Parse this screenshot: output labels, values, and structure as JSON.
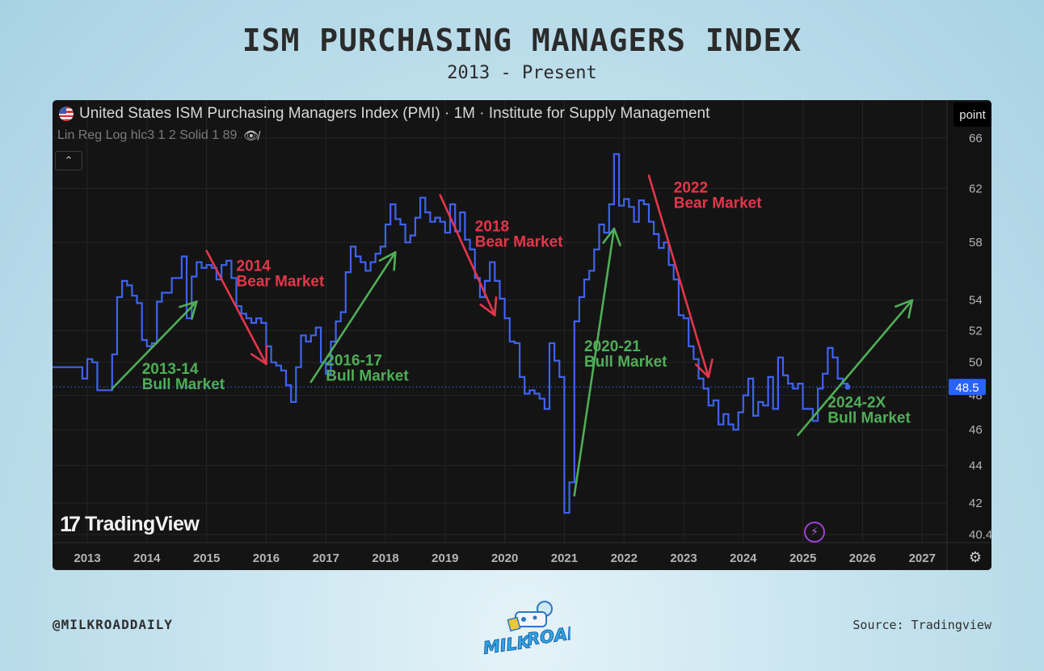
{
  "title": "ISM PURCHASING MANAGERS INDEX",
  "subtitle": "2013 - Present",
  "chart_header": {
    "series_title": "United States ISM Purchasing Managers Index (PMI) · 1M · Institute for Supply Management",
    "indicator": "Lin Reg Log hlc3 1 2 Solid 1 89",
    "mode_button": "point",
    "collapse_icon": "chevron-up-icon",
    "eye_icon": "eye-off-icon",
    "flag_icon": "us-flag-icon"
  },
  "watermark": "TradingView",
  "footer": {
    "handle": "@MILKROADDAILY",
    "source": "Source: Tradingview",
    "brand": [
      "MILK",
      "ROAD"
    ]
  },
  "colors": {
    "line": "#3f63f0",
    "bull": "#4fae57",
    "bear": "#e5364a",
    "panel": "#141414",
    "last_price_tag": "#2962ff"
  },
  "chart_data": {
    "type": "line",
    "title": "United States ISM Purchasing Managers Index (PMI)",
    "xlabel": "",
    "ylabel": "",
    "scale": "log",
    "grid": true,
    "x_tick_labels": [
      "2013",
      "2014",
      "2015",
      "2016",
      "2017",
      "2018",
      "2019",
      "2020",
      "2021",
      "2022",
      "2023",
      "2024",
      "2025",
      "2026",
      "2027"
    ],
    "y_tick_labels": [
      "66",
      "62",
      "58",
      "54",
      "52",
      "50",
      "48",
      "46",
      "44",
      "42",
      "40.4"
    ],
    "y_ticks": [
      66,
      62,
      58,
      54,
      52,
      50,
      48,
      46,
      44,
      42,
      40.4
    ],
    "xlim": [
      "2012-06",
      "2027-06"
    ],
    "ylim": [
      40.0,
      67.8
    ],
    "last_value_label": "48.5",
    "last_value": 48.5,
    "series": [
      {
        "values": [
          [
            "2012-06",
            49.7
          ],
          [
            "2012-09",
            49.7
          ],
          [
            "2012-12",
            49.0
          ],
          [
            "2013-01",
            50.2
          ],
          [
            "2013-02",
            50.0
          ],
          [
            "2013-03",
            48.3
          ],
          [
            "2013-05",
            48.3
          ],
          [
            "2013-06",
            50.5
          ],
          [
            "2013-07",
            54.2
          ],
          [
            "2013-08",
            55.3
          ],
          [
            "2013-09",
            55.0
          ],
          [
            "2013-10",
            54.3
          ],
          [
            "2013-11",
            53.8
          ],
          [
            "2013-12",
            51.4
          ],
          [
            "2014-01",
            51.0
          ],
          [
            "2014-02",
            51.2
          ],
          [
            "2014-03",
            53.9
          ],
          [
            "2014-04",
            54.5
          ],
          [
            "2014-05",
            54.5
          ],
          [
            "2014-06",
            55.5
          ],
          [
            "2014-07",
            55.5
          ],
          [
            "2014-08",
            57.0
          ],
          [
            "2014-09",
            52.8
          ],
          [
            "2014-10",
            55.6
          ],
          [
            "2014-11",
            56.6
          ],
          [
            "2014-12",
            56.2
          ],
          [
            "2015-01",
            56.4
          ],
          [
            "2015-02",
            56.2
          ],
          [
            "2015-03",
            55.4
          ],
          [
            "2015-04",
            56.4
          ],
          [
            "2015-05",
            56.7
          ],
          [
            "2015-06",
            55.5
          ],
          [
            "2015-07",
            53.6
          ],
          [
            "2015-08",
            53.1
          ],
          [
            "2015-09",
            52.8
          ],
          [
            "2015-10",
            52.5
          ],
          [
            "2015-11",
            52.8
          ],
          [
            "2015-12",
            52.5
          ],
          [
            "2016-01",
            51.0
          ],
          [
            "2016-02",
            50.0
          ],
          [
            "2016-03",
            49.8
          ],
          [
            "2016-04",
            49.5
          ],
          [
            "2016-05",
            48.6
          ],
          [
            "2016-06",
            47.6
          ],
          [
            "2016-07",
            49.7
          ],
          [
            "2016-08",
            51.7
          ],
          [
            "2016-09",
            51.3
          ],
          [
            "2016-10",
            51.7
          ],
          [
            "2016-11",
            52.2
          ],
          [
            "2016-12",
            50.0
          ],
          [
            "2017-01",
            49.3
          ],
          [
            "2017-02",
            51.3
          ],
          [
            "2017-03",
            52.6
          ],
          [
            "2017-04",
            53.2
          ],
          [
            "2017-05",
            55.9
          ],
          [
            "2017-06",
            57.7
          ],
          [
            "2017-07",
            57.0
          ],
          [
            "2017-08",
            56.6
          ],
          [
            "2017-09",
            56.0
          ],
          [
            "2017-10",
            56.6
          ],
          [
            "2017-11",
            57.2
          ],
          [
            "2017-12",
            57.7
          ],
          [
            "2018-01",
            59.3
          ],
          [
            "2018-02",
            60.8
          ],
          [
            "2018-03",
            59.7
          ],
          [
            "2018-04",
            59.3
          ],
          [
            "2018-05",
            58.0
          ],
          [
            "2018-06",
            58.5
          ],
          [
            "2018-07",
            59.8
          ],
          [
            "2018-08",
            61.3
          ],
          [
            "2018-09",
            60.2
          ],
          [
            "2018-10",
            59.5
          ],
          [
            "2018-11",
            59.8
          ],
          [
            "2018-12",
            59.5
          ],
          [
            "2019-01",
            58.7
          ],
          [
            "2019-02",
            60.8
          ],
          [
            "2019-03",
            58.8
          ],
          [
            "2019-04",
            60.2
          ],
          [
            "2019-05",
            58.2
          ],
          [
            "2019-06",
            57.5
          ],
          [
            "2019-07",
            55.5
          ],
          [
            "2019-08",
            54.2
          ],
          [
            "2019-09",
            55.3
          ],
          [
            "2019-10",
            56.6
          ],
          [
            "2019-11",
            55.3
          ],
          [
            "2019-12",
            54.1
          ],
          [
            "2020-01",
            52.8
          ],
          [
            "2020-02",
            51.3
          ],
          [
            "2020-03",
            51.2
          ],
          [
            "2020-04",
            49.1
          ],
          [
            "2020-05",
            48.1
          ],
          [
            "2020-06",
            48.3
          ],
          [
            "2020-07",
            48.1
          ],
          [
            "2020-08",
            47.8
          ],
          [
            "2020-09",
            47.2
          ],
          [
            "2020-10",
            51.2
          ],
          [
            "2020-11",
            50.1
          ],
          [
            "2020-12",
            49.1
          ],
          [
            "2021-01",
            41.5
          ],
          [
            "2021-02",
            43.1
          ],
          [
            "2021-03",
            52.6
          ],
          [
            "2021-04",
            54.2
          ],
          [
            "2021-05",
            55.4
          ],
          [
            "2021-06",
            56.0
          ],
          [
            "2021-07",
            57.5
          ],
          [
            "2021-08",
            59.3
          ],
          [
            "2021-09",
            58.7
          ],
          [
            "2021-10",
            60.8
          ],
          [
            "2021-11",
            64.7
          ],
          [
            "2021-12",
            60.7
          ],
          [
            "2022-01",
            61.2
          ],
          [
            "2022-02",
            60.6
          ],
          [
            "2022-03",
            59.5
          ],
          [
            "2022-04",
            61.1
          ],
          [
            "2022-05",
            60.8
          ],
          [
            "2022-06",
            59.5
          ],
          [
            "2022-07",
            58.6
          ],
          [
            "2022-08",
            57.6
          ],
          [
            "2022-09",
            58.0
          ],
          [
            "2022-10",
            56.4
          ],
          [
            "2022-11",
            55.4
          ],
          [
            "2022-12",
            53.0
          ],
          [
            "2023-01",
            52.8
          ],
          [
            "2023-02",
            51.0
          ],
          [
            "2023-03",
            50.2
          ],
          [
            "2023-04",
            49.0
          ],
          [
            "2023-05",
            48.4
          ],
          [
            "2023-06",
            47.4
          ],
          [
            "2023-07",
            47.7
          ],
          [
            "2023-08",
            46.3
          ],
          [
            "2023-09",
            46.9
          ],
          [
            "2023-10",
            46.3
          ],
          [
            "2023-11",
            46.0
          ],
          [
            "2023-12",
            47.0
          ],
          [
            "2024-01",
            48.0
          ],
          [
            "2024-02",
            49.0
          ],
          [
            "2024-03",
            46.8
          ],
          [
            "2024-04",
            47.6
          ],
          [
            "2024-05",
            47.4
          ],
          [
            "2024-06",
            49.1
          ],
          [
            "2024-07",
            47.2
          ],
          [
            "2024-08",
            50.3
          ],
          [
            "2024-09",
            49.2
          ],
          [
            "2024-10",
            48.7
          ],
          [
            "2024-11",
            48.4
          ],
          [
            "2024-12",
            48.7
          ],
          [
            "2025-01",
            47.2
          ],
          [
            "2025-02",
            47.2
          ],
          [
            "2025-03",
            46.5
          ],
          [
            "2025-04",
            48.4
          ],
          [
            "2025-05",
            49.3
          ],
          [
            "2025-06",
            50.9
          ],
          [
            "2025-07",
            50.3
          ],
          [
            "2025-08",
            49.0
          ],
          [
            "2025-09",
            48.7
          ],
          [
            "2025-10",
            48.5
          ]
        ]
      }
    ],
    "annotations": [
      {
        "label": [
          "2013-14",
          "Bull Market"
        ],
        "trend": "bull",
        "from": [
          "2013-06",
          48.4
        ],
        "to": [
          "2014-11",
          53.9
        ],
        "text_at": [
          "2013-12",
          49.3
        ]
      },
      {
        "label": [
          "2014",
          "Bear Market"
        ],
        "trend": "bear",
        "from": [
          "2015-01",
          57.4
        ],
        "to": [
          "2016-01",
          49.9
        ],
        "text_at": [
          "2015-07",
          56.0
        ]
      },
      {
        "label": [
          "2016-17",
          "Bull Market"
        ],
        "trend": "bull",
        "from": [
          "2016-10",
          48.8
        ],
        "to": [
          "2018-03",
          57.3
        ],
        "text_at": [
          "2017-01",
          49.8
        ]
      },
      {
        "label": [
          "2018",
          "Bear Market"
        ],
        "trend": "bear",
        "from": [
          "2018-12",
          61.5
        ],
        "to": [
          "2019-11",
          53.0
        ],
        "text_at": [
          "2019-07",
          58.8
        ]
      },
      {
        "label": [
          "2020-21",
          "Bull Market"
        ],
        "trend": "bull",
        "from": [
          "2021-03",
          42.4
        ],
        "to": [
          "2021-11",
          59.0
        ],
        "text_at": [
          "2021-05",
          50.7
        ]
      },
      {
        "label": [
          "2022",
          "Bear Market"
        ],
        "trend": "bear",
        "from": [
          "2022-06",
          63.0
        ],
        "to": [
          "2023-06",
          49.1
        ],
        "text_at": [
          "2022-11",
          61.7
        ]
      },
      {
        "label": [
          "2024-2X",
          "Bull Market"
        ],
        "trend": "bull",
        "from": [
          "2024-12",
          45.7
        ],
        "to": [
          "2026-11",
          54.0
        ],
        "text_at": [
          "2025-06",
          47.3
        ]
      }
    ]
  }
}
